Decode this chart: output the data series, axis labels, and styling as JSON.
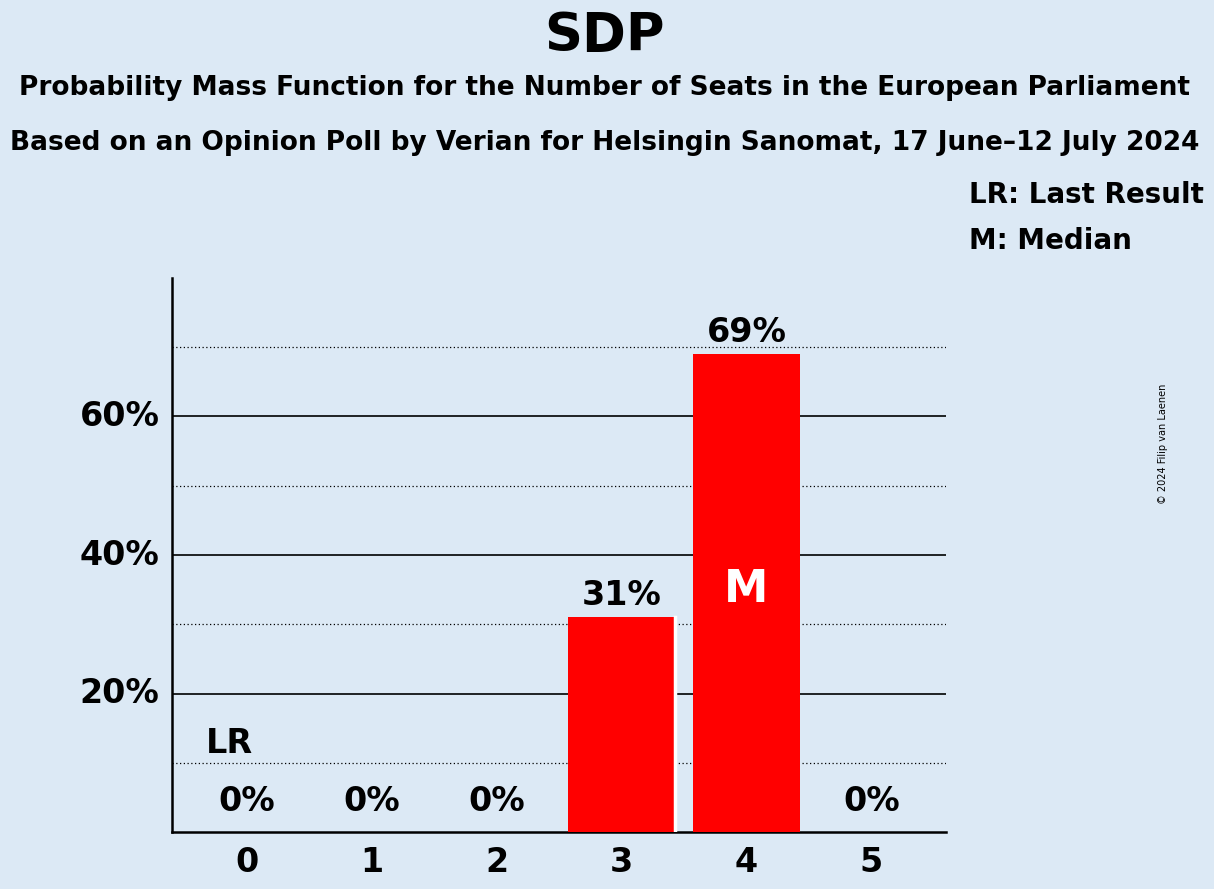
{
  "title": "SDP",
  "subtitle_line1": "Probability Mass Function for the Number of Seats in the European Parliament",
  "subtitle_line2": "Based on an Opinion Poll by Verian for Helsingin Sanomat, 17 June–12 July 2024",
  "categories": [
    0,
    1,
    2,
    3,
    4,
    5
  ],
  "values": [
    0,
    0,
    0,
    31,
    69,
    0
  ],
  "bar_color_red": "#ff0000",
  "background_color": "#dce9f5",
  "title_fontsize": 38,
  "subtitle_fontsize": 19,
  "bar_label_fontsize": 24,
  "axis_tick_fontsize": 24,
  "ylabel_fontsize": 24,
  "legend_fontsize": 20,
  "ylim_max": 80,
  "solid_gridlines": [
    20,
    40,
    60
  ],
  "dotted_gridlines": [
    10,
    30,
    50,
    70
  ],
  "lr_value": 10,
  "median_bar": 4,
  "lr_label": "LR",
  "median_label": "M",
  "median_fontsize": 32,
  "legend_lr": "LR: Last Result",
  "legend_m": "M: Median",
  "copyright": "© 2024 Filip van Laenen",
  "ylabel_values": [
    20,
    40,
    60
  ],
  "ylabel_labels": [
    "20%",
    "40%",
    "60%"
  ]
}
